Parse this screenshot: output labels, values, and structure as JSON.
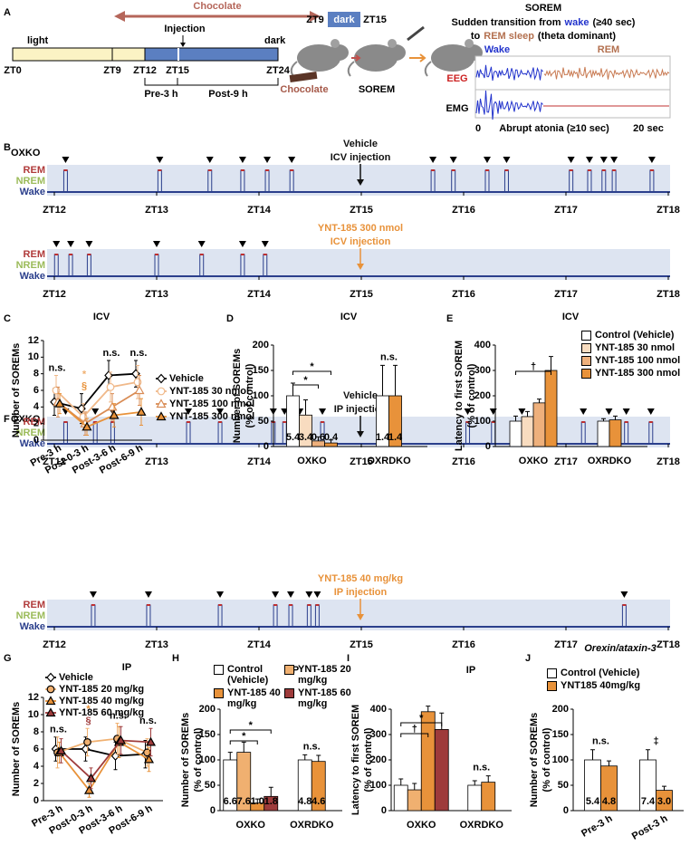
{
  "panel_labels": [
    "A",
    "B",
    "C",
    "D",
    "E",
    "F",
    "G",
    "H",
    "I",
    "J"
  ],
  "schema": {
    "chocolate": "Chocolate",
    "injection": "Injection",
    "light": "light",
    "dark": "dark",
    "zt_labels": [
      "ZT0",
      "ZT9",
      "ZT12",
      "ZT15",
      "ZT24"
    ],
    "pre": "Pre-3 h",
    "post": "Post-9 h",
    "mice": {
      "zt_start": "ZT9",
      "dark": "dark",
      "zt_end": "ZT15",
      "chocolate": "Chocolate",
      "sorem": "SOREM"
    }
  },
  "sorem_example": {
    "title": "SOREM",
    "line1": [
      "Sudden transition from",
      "wake",
      "(≥40 sec)"
    ],
    "line2": [
      "to",
      "REM sleep",
      "(theta dominant)"
    ],
    "wake": "Wake",
    "rem": "REM",
    "eeg": "EEG",
    "emg": "EMG",
    "start": "0",
    "atonia": "Abrupt atonia (≥10 sec)",
    "end": "20 sec"
  },
  "hypnograms": [
    {
      "strain": "OXKO",
      "xlim": [
        12,
        18
      ],
      "xticks": [
        {
          "value": 12,
          "label": "ZT12"
        },
        {
          "value": 13,
          "label": "ZT13"
        },
        {
          "value": 14,
          "label": "ZT14"
        },
        {
          "value": 15,
          "label": "ZT15"
        },
        {
          "value": 16,
          "label": "ZT16"
        },
        {
          "value": 17,
          "label": "ZT17"
        },
        {
          "value": 18,
          "label": "ZT18"
        }
      ],
      "stages": [
        "REM",
        "NREM",
        "Wake"
      ],
      "traces": [
        {
          "label": [
            "Vehicle",
            "ICV injection"
          ],
          "color": "#111111",
          "sorem_times": [
            12.11,
            13.03,
            13.52,
            13.84,
            14.08,
            14.32,
            15.7,
            15.9,
            16.23,
            16.42,
            17.05,
            17.23,
            17.37,
            17.47,
            17.84
          ]
        },
        {
          "label": [
            "YNT-185 300 nmol",
            "ICV injection"
          ],
          "color": "#e8923a",
          "sorem_times": [
            12.02,
            12.16,
            12.34,
            13.0,
            13.44,
            13.84,
            14.06
          ]
        }
      ]
    },
    {
      "strain": "OXKO",
      "xlim": [
        12,
        18
      ],
      "xticks": [
        {
          "value": 12,
          "label": "ZT12"
        },
        {
          "value": 13,
          "label": "ZT13"
        },
        {
          "value": 14,
          "label": "ZT14"
        },
        {
          "value": 15,
          "label": "ZT15"
        },
        {
          "value": 16,
          "label": "ZT16"
        },
        {
          "value": 17,
          "label": "ZT17"
        },
        {
          "value": 18,
          "label": "ZT18"
        }
      ],
      "stages": [
        "REM",
        "NREM",
        "Wake"
      ],
      "traces": [
        {
          "label": [
            "Vehicle",
            "IP injection"
          ],
          "color": "#111111",
          "sorem_times": [
            12.11,
            12.4,
            12.57,
            13.31,
            13.62,
            14.14,
            14.25,
            14.4,
            14.62,
            16.04,
            16.29,
            16.57,
            17.17,
            17.42,
            17.59,
            17.83
          ]
        },
        {
          "label": [
            "YNT-185 40 mg/kg",
            "IP injection"
          ],
          "color": "#e8923a",
          "sorem_times": [
            12.38,
            12.92,
            13.62,
            14.16,
            14.31,
            14.49,
            14.57,
            17.57
          ]
        }
      ]
    }
  ],
  "chart_data": [
    {
      "type": "line",
      "title": "ICV",
      "ylabel": "Number of SOREMs",
      "categories": [
        "Pre-3 h",
        "Post-0-3 h",
        "Post-3-6 h",
        "Post-6-9 h"
      ],
      "ylim": [
        0,
        12
      ],
      "yticks": [
        0,
        2,
        4,
        6,
        8,
        10,
        12
      ],
      "series": [
        {
          "name": "Vehicle",
          "color": "#000000",
          "marker": "diamond",
          "filled": false,
          "values": [
            4.6,
            3.8,
            7.8,
            8.0
          ],
          "errors": [
            1.6,
            1.8,
            1.8,
            1.6
          ]
        },
        {
          "name": "YNT-185 30 nmol",
          "color": "#f0b98a",
          "marker": "circle",
          "filled": false,
          "values": [
            6.0,
            2.8,
            6.4,
            7.0
          ],
          "errors": [
            1.8,
            1.6,
            1.8,
            2.0
          ]
        },
        {
          "name": "YNT-185 100 nmol",
          "color": "#d98c55",
          "marker": "triangle",
          "filled": false,
          "values": [
            4.6,
            2.0,
            4.0,
            6.0
          ],
          "errors": [
            1.8,
            1.4,
            1.6,
            1.8
          ]
        },
        {
          "name": "YNT-185 300 nmol",
          "color": "#e8923a",
          "marker": "triangle",
          "filled": true,
          "values": [
            4.4,
            1.6,
            3.0,
            3.4
          ],
          "errors": [
            1.2,
            1.0,
            1.4,
            1.6
          ]
        }
      ],
      "annotations": [
        [
          "n.s."
        ],
        [
          "*",
          "§"
        ],
        [
          "n.s."
        ],
        [
          "n.s."
        ]
      ]
    },
    {
      "type": "bar",
      "title": "ICV",
      "ylabel": [
        "Number of SOREMs",
        "(% of control)"
      ],
      "categories": [
        "OXKO",
        "OXRDKO"
      ],
      "ylim": [
        0,
        200
      ],
      "yticks": [
        0,
        50,
        100,
        150,
        200
      ],
      "series": [
        {
          "color": "#ffffff",
          "values": [
            100,
            100
          ],
          "errors": [
            25,
            60
          ],
          "count_labels": [
            "5.4",
            "1.4"
          ]
        },
        {
          "color": "#f8dcc0",
          "values": [
            62,
            null
          ],
          "errors": [
            30,
            null
          ],
          "count_labels": [
            "3.4",
            null
          ]
        },
        {
          "color": "#eeb07c",
          "values": [
            11,
            null
          ],
          "errors": [
            8,
            null
          ],
          "count_labels": [
            "0.6",
            null
          ]
        },
        {
          "color": "#e8923a",
          "values": [
            7,
            100
          ],
          "errors": [
            6,
            60
          ],
          "count_labels": [
            "0.4",
            "1.4"
          ]
        }
      ],
      "brackets": [
        "*",
        "*"
      ],
      "annotations": [
        null,
        "n.s."
      ]
    },
    {
      "type": "bar",
      "title": "ICV",
      "ylabel": [
        "Latency to first SOREM",
        "(% of control)"
      ],
      "categories": [
        "OXKO",
        "OXRDKO"
      ],
      "ylim": [
        0,
        400
      ],
      "yticks": [
        0,
        100,
        200,
        300,
        400
      ],
      "series": [
        {
          "name": "Control (Vehicle)",
          "color": "#ffffff",
          "values": [
            100,
            100
          ],
          "errors": [
            20,
            10
          ]
        },
        {
          "name": "YNT-185 30 nmol",
          "color": "#f8dcc0",
          "values": [
            118,
            null
          ],
          "errors": [
            20,
            null
          ]
        },
        {
          "name": "YNT-185 100 nmol",
          "color": "#eeb07c",
          "values": [
            172,
            null
          ],
          "errors": [
            15,
            null
          ]
        },
        {
          "name": "YNT-185 300 nmol",
          "color": "#e8923a",
          "values": [
            300,
            105
          ],
          "errors": [
            55,
            15
          ]
        }
      ],
      "brackets": [
        "†"
      ]
    },
    {
      "type": "line",
      "title": "IP",
      "ylabel": "Number of SOREMs",
      "categories": [
        "Pre-3 h",
        "Post-0-3 h",
        "Post-3-6 h",
        "Post-6-9 h"
      ],
      "ylim": [
        0,
        12
      ],
      "yticks": [
        0,
        2,
        4,
        6,
        8,
        10,
        12
      ],
      "series": [
        {
          "name": "Vehicle",
          "color": "#000000",
          "marker": "diamond",
          "filled": false,
          "values": [
            6.0,
            6.0,
            5.2,
            5.4
          ],
          "errors": [
            1.4,
            1.4,
            1.6,
            1.6
          ]
        },
        {
          "name": "YNT-185 20 mg/kg",
          "color": "#f0b070",
          "marker": "circle",
          "filled": true,
          "values": [
            5.6,
            6.8,
            7.2,
            5.6
          ],
          "errors": [
            1.8,
            1.6,
            1.8,
            1.6
          ]
        },
        {
          "name": "YNT-185 40 mg/kg",
          "color": "#e8923a",
          "marker": "triangle",
          "filled": true,
          "values": [
            5.6,
            1.2,
            6.8,
            4.8
          ],
          "errors": [
            1.2,
            0.8,
            1.8,
            1.4
          ]
        },
        {
          "name": "YNT-185 60 mg/kg",
          "color": "#9e3b3b",
          "marker": "triangle",
          "filled": true,
          "values": [
            5.8,
            2.6,
            7.0,
            6.8
          ],
          "errors": [
            1.4,
            1.2,
            1.6,
            1.6
          ]
        }
      ],
      "annotations": [
        [
          "n.s."
        ],
        [
          "*",
          "§"
        ],
        [
          "n.s."
        ],
        [
          "n.s."
        ]
      ]
    },
    {
      "type": "bar",
      "title": "IP",
      "ylabel": [
        "Number of SOREMs",
        "(% of control)"
      ],
      "categories": [
        "OXKO",
        "OXRDKO"
      ],
      "ylim": [
        0,
        200
      ],
      "yticks": [
        0,
        50,
        100,
        150,
        200
      ],
      "series": [
        {
          "name": "Control (Vehicle)",
          "color": "#ffffff",
          "values": [
            100,
            100
          ],
          "errors": [
            15,
            10
          ],
          "count_labels": [
            "6.6",
            "4.8"
          ]
        },
        {
          "name": "YNT-185 20 mg/kg",
          "color": "#f0b070",
          "values": [
            115,
            null
          ],
          "errors": [
            20,
            null
          ],
          "count_labels": [
            "7.6",
            null
          ]
        },
        {
          "name": "YNT-185 40 mg/kg",
          "color": "#e8923a",
          "values": [
            15,
            97
          ],
          "errors": [
            8,
            12
          ],
          "count_labels": [
            "1.0",
            "4.6"
          ]
        },
        {
          "name": "YNT-185 60 mg/kg",
          "color": "#9e3b3b",
          "values": [
            28,
            null
          ],
          "errors": [
            18,
            null
          ],
          "count_labels": [
            "1.8",
            null
          ]
        }
      ],
      "brackets": [
        "*",
        "*"
      ],
      "annotations": [
        null,
        "n.s."
      ]
    },
    {
      "type": "bar",
      "title": "IP",
      "ylabel": [
        "Latency to first SOREM",
        "(% of control)"
      ],
      "categories": [
        "OXKO",
        "OXRDKO"
      ],
      "ylim": [
        0,
        400
      ],
      "yticks": [
        0,
        100,
        200,
        300,
        400
      ],
      "series": [
        {
          "color": "#ffffff",
          "values": [
            100,
            100
          ],
          "errors": [
            25,
            18
          ]
        },
        {
          "color": "#f0b070",
          "values": [
            82,
            null
          ],
          "errors": [
            25,
            null
          ]
        },
        {
          "color": "#e8923a",
          "values": [
            390,
            112
          ],
          "errors": [
            22,
            25
          ]
        },
        {
          "color": "#9e3b3b",
          "values": [
            320,
            null
          ],
          "errors": [
            65,
            null
          ]
        }
      ],
      "brackets": [
        "†",
        "*"
      ],
      "annotations": [
        null,
        "n.s."
      ]
    },
    {
      "type": "bar",
      "title": "Orexin/ataxin-3",
      "ylabel": [
        "Number of SOREMs",
        "(% of control)"
      ],
      "categories": [
        "Pre-3 h",
        "Post-3 h"
      ],
      "ylim": [
        0,
        200
      ],
      "yticks": [
        0,
        50,
        100,
        150,
        200
      ],
      "series": [
        {
          "name": "Control (Vehicle)",
          "color": "#ffffff",
          "values": [
            100,
            100
          ],
          "errors": [
            20,
            20
          ],
          "count_labels": [
            "5.4",
            "7.4"
          ]
        },
        {
          "name": "YNT185 40mg/kg",
          "color": "#e8923a",
          "values": [
            88,
            40
          ],
          "errors": [
            10,
            8
          ],
          "count_labels": [
            "4.8",
            "3.0"
          ]
        }
      ],
      "annotations": [
        "n.s.",
        "‡"
      ]
    }
  ]
}
